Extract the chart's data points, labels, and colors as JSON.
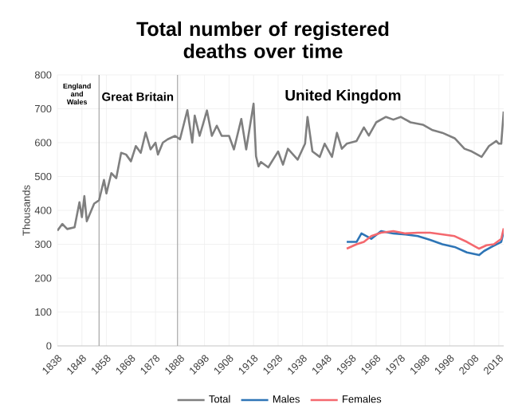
{
  "chart_data": {
    "type": "line",
    "title": "Total number of registered deaths over time",
    "ylabel": "Thousands",
    "xlim": [
      1838,
      2020
    ],
    "ylim": [
      0,
      800
    ],
    "xticks": [
      1838,
      1848,
      1858,
      1868,
      1878,
      1888,
      1898,
      1908,
      1918,
      1928,
      1938,
      1948,
      1958,
      1968,
      1978,
      1988,
      1998,
      2008,
      2018
    ],
    "yticks": [
      0,
      100,
      200,
      300,
      400,
      500,
      600,
      700,
      800
    ],
    "grid": true,
    "legend": "bottom",
    "marker": "none",
    "line_style": "solid",
    "ref_lines": [
      {
        "axis": "x",
        "value": 1855,
        "color": "#a6a6a6"
      },
      {
        "axis": "x",
        "value": 1887,
        "color": "#a6a6a6"
      }
    ],
    "annotations": [
      "England and Wales",
      "Great Britain",
      "United Kingdom"
    ],
    "series": [
      {
        "name": "Total",
        "color": "#7f7f7f",
        "x": [
          1838,
          1840,
          1842,
          1845,
          1847,
          1848,
          1849,
          1850,
          1853,
          1855,
          1857,
          1858,
          1860,
          1862,
          1864,
          1866,
          1868,
          1870,
          1872,
          1874,
          1876,
          1878,
          1879,
          1881,
          1883,
          1886,
          1888,
          1891,
          1893,
          1894,
          1896,
          1899,
          1901,
          1903,
          1905,
          1908,
          1910,
          1913,
          1915,
          1918,
          1919,
          1920,
          1921,
          1924,
          1928,
          1930,
          1932,
          1936,
          1939,
          1940,
          1942,
          1945,
          1947,
          1950,
          1952,
          1954,
          1956,
          1960,
          1963,
          1965,
          1968,
          1972,
          1975,
          1978,
          1982,
          1987,
          1991,
          1995,
          2000,
          2004,
          2007,
          2011,
          2014,
          2017,
          2018,
          2019,
          2020
        ],
        "values": [
          340,
          360,
          345,
          350,
          424,
          380,
          442,
          368,
          420,
          430,
          490,
          450,
          510,
          495,
          570,
          565,
          545,
          590,
          570,
          630,
          580,
          600,
          565,
          600,
          610,
          620,
          610,
          696,
          600,
          680,
          620,
          695,
          620,
          650,
          620,
          620,
          580,
          670,
          580,
          715,
          560,
          530,
          543,
          527,
          574,
          535,
          582,
          550,
          597,
          676,
          574,
          558,
          597,
          558,
          629,
          582,
          597,
          605,
          645,
          621,
          660,
          676,
          668,
          676,
          660,
          653,
          637,
          629,
          613,
          582,
          574,
          558,
          590,
          605,
          597,
          597,
          692
        ]
      },
      {
        "name": "Males",
        "color": "#2e75b6",
        "x": [
          1956,
          1960,
          1962,
          1966,
          1970,
          1975,
          1980,
          1985,
          1990,
          1995,
          2000,
          2005,
          2010,
          2012,
          2015,
          2019,
          2020
        ],
        "values": [
          307,
          307,
          332,
          316,
          339,
          332,
          329,
          324,
          313,
          300,
          292,
          276,
          268,
          280,
          292,
          307,
          338
        ]
      },
      {
        "name": "Females",
        "color": "#f4686e",
        "x": [
          1956,
          1960,
          1963,
          1966,
          1970,
          1975,
          1980,
          1985,
          1990,
          1995,
          2000,
          2005,
          2010,
          2013,
          2016,
          2019,
          2020
        ],
        "values": [
          287,
          300,
          307,
          324,
          334,
          339,
          332,
          334,
          334,
          329,
          324,
          307,
          287,
          297,
          300,
          316,
          347
        ]
      }
    ]
  }
}
